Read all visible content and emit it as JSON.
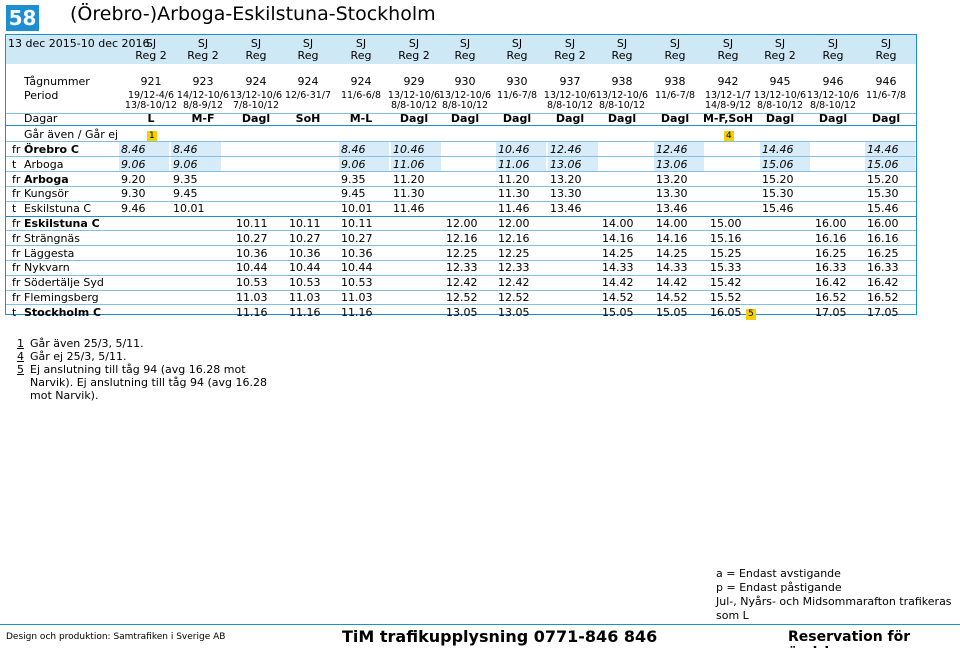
{
  "header": {
    "route_number": "58",
    "title": "(Örebro-)Arboga-Eskilstuna-Stockholm"
  },
  "period_range": "13 dec 2015-10 dec 2016",
  "operators": [
    "SJ",
    "SJ",
    "SJ",
    "SJ",
    "SJ",
    "SJ",
    "SJ",
    "SJ",
    "SJ",
    "SJ",
    "SJ",
    "SJ",
    "SJ",
    "SJ",
    "SJ"
  ],
  "train_types": [
    "Reg 2",
    "Reg 2",
    "Reg",
    "Reg",
    "Reg",
    "Reg 2",
    "Reg",
    "Reg",
    "Reg 2",
    "Reg",
    "Reg",
    "Reg",
    "Reg 2",
    "Reg",
    "Reg"
  ],
  "labels": {
    "train_number": "Tågnummer",
    "period": "Period",
    "days": "Dagar",
    "note_row": "Går även / Går ej"
  },
  "train_numbers": [
    "921",
    "923",
    "924",
    "924",
    "924",
    "929",
    "930",
    "930",
    "937",
    "938",
    "938",
    "942",
    "945",
    "946",
    "946"
  ],
  "periods": [
    [
      "19/12-4/6",
      "13/8-10/12"
    ],
    [
      "14/12-10/6",
      "8/8-9/12"
    ],
    [
      "13/12-10/6",
      "7/8-10/12"
    ],
    [
      "12/6-31/7",
      ""
    ],
    [
      "11/6-6/8",
      ""
    ],
    [
      "13/12-10/6",
      "8/8-10/12"
    ],
    [
      "13/12-10/6",
      "8/8-10/12"
    ],
    [
      "11/6-7/8",
      ""
    ],
    [
      "13/12-10/6",
      "8/8-10/12"
    ],
    [
      "13/12-10/6",
      "8/8-10/12"
    ],
    [
      "11/6-7/8",
      ""
    ],
    [
      "13/12-1/7",
      "14/8-9/12"
    ],
    [
      "13/12-10/6",
      "8/8-10/12"
    ],
    [
      "13/12-10/6",
      "8/8-10/12"
    ],
    [
      "11/6-7/8",
      ""
    ]
  ],
  "days": [
    "L",
    "M-F",
    "Dagl",
    "SoH",
    "M-L",
    "Dagl",
    "Dagl",
    "Dagl",
    "Dagl",
    "Dagl",
    "Dagl",
    "M-F,SoH",
    "Dagl",
    "Dagl",
    "Dagl"
  ],
  "note_marks": [
    "1",
    "",
    "",
    "",
    "",
    "",
    "",
    "",
    "",
    "",
    "",
    "4",
    "",
    "",
    ""
  ],
  "stations": [
    {
      "p": "fr",
      "name": "Örebro C",
      "bold": true,
      "italic": true,
      "times": [
        "8.46",
        "8.46",
        "",
        "",
        "8.46",
        "10.46",
        "",
        "10.46",
        "12.46",
        "",
        "12.46",
        "",
        "14.46",
        "",
        "14.46"
      ]
    },
    {
      "p": "t",
      "name": "Arboga",
      "bold": false,
      "italic": true,
      "times": [
        "9.06",
        "9.06",
        "",
        "",
        "9.06",
        "11.06",
        "",
        "11.06",
        "13.06",
        "",
        "13.06",
        "",
        "15.06",
        "",
        "15.06"
      ]
    },
    {
      "p": "fr",
      "name": "Arboga",
      "bold": true,
      "italic": false,
      "times": [
        "9.20",
        "9.35",
        "",
        "",
        "9.35",
        "11.20",
        "",
        "11.20",
        "13.20",
        "",
        "13.20",
        "",
        "15.20",
        "",
        "15.20"
      ]
    },
    {
      "p": "fr",
      "name": "Kungsör",
      "bold": false,
      "italic": false,
      "times": [
        "9.30",
        "9.45",
        "",
        "",
        "9.45",
        "11.30",
        "",
        "11.30",
        "13.30",
        "",
        "13.30",
        "",
        "15.30",
        "",
        "15.30"
      ]
    },
    {
      "p": "t",
      "name": "Eskilstuna C",
      "bold": false,
      "italic": false,
      "times": [
        "9.46",
        "10.01",
        "",
        "",
        "10.01",
        "11.46",
        "",
        "11.46",
        "13.46",
        "",
        "13.46",
        "",
        "15.46",
        "",
        "15.46"
      ]
    },
    {
      "p": "fr",
      "name": "Eskilstuna C",
      "bold": true,
      "italic": false,
      "times": [
        "",
        "",
        "10.11",
        "10.11",
        "10.11",
        "",
        "12.00",
        "12.00",
        "",
        "14.00",
        "14.00",
        "15.00",
        "",
        "16.00",
        "16.00"
      ]
    },
    {
      "p": "fr",
      "name": "Strängnäs",
      "bold": false,
      "italic": false,
      "times": [
        "",
        "",
        "10.27",
        "10.27",
        "10.27",
        "",
        "12.16",
        "12.16",
        "",
        "14.16",
        "14.16",
        "15.16",
        "",
        "16.16",
        "16.16"
      ]
    },
    {
      "p": "fr",
      "name": "Läggesta",
      "bold": false,
      "italic": false,
      "times": [
        "",
        "",
        "10.36",
        "10.36",
        "10.36",
        "",
        "12.25",
        "12.25",
        "",
        "14.25",
        "14.25",
        "15.25",
        "",
        "16.25",
        "16.25"
      ]
    },
    {
      "p": "fr",
      "name": "Nykvarn",
      "bold": false,
      "italic": false,
      "times": [
        "",
        "",
        "10.44",
        "10.44",
        "10.44",
        "",
        "12.33",
        "12.33",
        "",
        "14.33",
        "14.33",
        "15.33",
        "",
        "16.33",
        "16.33"
      ]
    },
    {
      "p": "fr",
      "name": "Södertälje Syd",
      "bold": false,
      "italic": false,
      "times": [
        "",
        "",
        "10.53",
        "10.53",
        "10.53",
        "",
        "12.42",
        "12.42",
        "",
        "14.42",
        "14.42",
        "15.42",
        "",
        "16.42",
        "16.42"
      ]
    },
    {
      "p": "fr",
      "name": "Flemingsberg",
      "bold": false,
      "italic": false,
      "times": [
        "",
        "",
        "11.03",
        "11.03",
        "11.03",
        "",
        "12.52",
        "12.52",
        "",
        "14.52",
        "14.52",
        "15.52",
        "",
        "16.52",
        "16.52"
      ]
    },
    {
      "p": "t",
      "name": "Stockholm C",
      "bold": true,
      "italic": false,
      "times": [
        "",
        "",
        "11.16",
        "11.16",
        "11.16",
        "",
        "13.05",
        "13.05",
        "",
        "15.05",
        "15.05",
        "16.05",
        "",
        "17.05",
        "17.05"
      ]
    }
  ],
  "stockholm_note_mark": "5",
  "footnotes": [
    {
      "mark": "1",
      "text": "Går även 25/3, 5/11."
    },
    {
      "mark": "4",
      "text": "Går ej 25/3, 5/11."
    },
    {
      "mark": "5",
      "text": "Ej anslutning till tåg 94 (avg 16.28 mot Narvik). Ej anslutning till tåg 94 (avg 16.28 mot Narvik)."
    }
  ],
  "legend": [
    "a = Endast avstigande",
    "p = Endast påstigande",
    "Jul-, Nyårs- och Midsommarafton trafikeras som L"
  ],
  "footer": {
    "credit": "Design och produktion: Samtrafiken i Sverige AB",
    "phone": "TiM trafikupplysning 0771-846 846",
    "reservation": "Reservation för ändringar"
  },
  "colors": {
    "accent": "#1b8fd1",
    "band": "#cfe8f6",
    "note": "#f5d000"
  }
}
